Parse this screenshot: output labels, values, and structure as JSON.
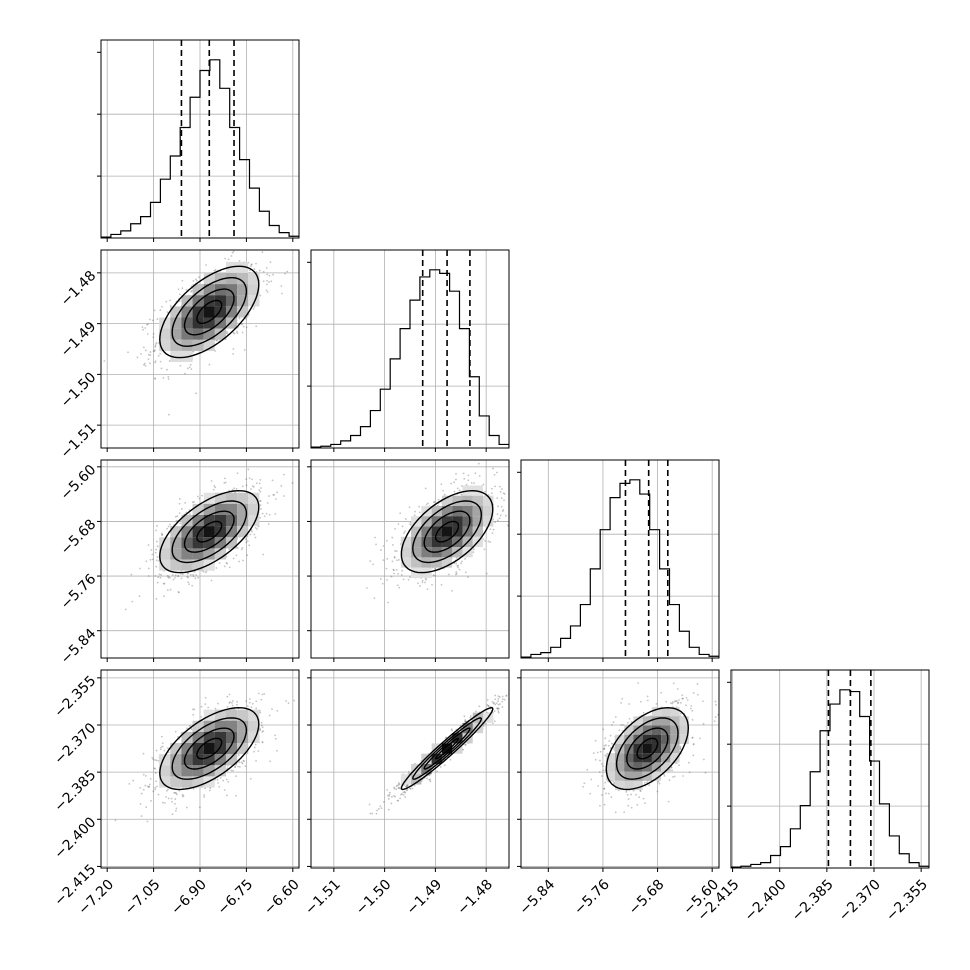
{
  "chart_data": {
    "type": "corner",
    "title": "",
    "grid": true,
    "parameters": [
      {
        "name": "",
        "range": [
          -7.22,
          -6.58
        ],
        "ticks": [
          "−7.20",
          "−7.05",
          "−6.90",
          "−6.75",
          "−6.60"
        ],
        "tick_values": [
          -7.2,
          -7.05,
          -6.9,
          -6.75,
          -6.6
        ],
        "quantiles": [
          -6.96,
          -6.87,
          -6.79
        ],
        "mean": -6.87,
        "sd": 0.08
      },
      {
        "name": "",
        "range": [
          -1.5145,
          -1.4755
        ],
        "ticks": [
          "−1.51",
          "−1.50",
          "−1.49",
          "−1.48"
        ],
        "tick_values": [
          -1.51,
          -1.5,
          -1.49,
          -1.48
        ],
        "quantiles": [
          -1.4925,
          -1.4877,
          -1.4832
        ],
        "mean": -1.4877,
        "sd": 0.0045
      },
      {
        "name": "",
        "range": [
          -5.88,
          -5.59
        ],
        "ticks": [
          "−5.84",
          "−5.76",
          "−5.68",
          "−5.60"
        ],
        "tick_values": [
          -5.84,
          -5.76,
          -5.68,
          -5.6
        ],
        "quantiles": [
          -5.727,
          -5.693,
          -5.665
        ],
        "mean": -5.695,
        "sd": 0.03
      },
      {
        "name": "",
        "range": [
          -2.4155,
          -2.3525
        ],
        "ticks": [
          "−2.415",
          "−2.400",
          "−2.385",
          "−2.370",
          "−2.355"
        ],
        "tick_values": [
          -2.415,
          -2.4,
          -2.385,
          -2.37,
          -2.355
        ],
        "quantiles": [
          -2.3845,
          -2.3775,
          -2.371
        ],
        "mean": -2.3775,
        "sd": 0.0065
      }
    ],
    "correlations": [
      [
        1.0,
        0.6,
        0.6,
        0.6
      ],
      [
        0.6,
        1.0,
        0.55,
        0.97
      ],
      [
        0.6,
        0.55,
        1.0,
        0.5
      ],
      [
        0.6,
        0.97,
        0.5,
        1.0
      ]
    ],
    "histograms": [
      [
        0.005,
        0.02,
        0.04,
        0.08,
        0.12,
        0.2,
        0.33,
        0.46,
        0.62,
        0.79,
        0.94,
        1.0,
        0.84,
        0.62,
        0.44,
        0.28,
        0.15,
        0.07,
        0.03,
        0.01
      ],
      [
        0.005,
        0.01,
        0.02,
        0.04,
        0.07,
        0.12,
        0.21,
        0.33,
        0.5,
        0.67,
        0.83,
        0.96,
        1.0,
        0.98,
        0.88,
        0.67,
        0.4,
        0.18,
        0.07,
        0.02
      ],
      [
        0.005,
        0.02,
        0.03,
        0.06,
        0.11,
        0.18,
        0.3,
        0.5,
        0.72,
        0.9,
        0.98,
        1.0,
        0.92,
        0.72,
        0.5,
        0.3,
        0.15,
        0.06,
        0.02,
        0.01
      ],
      [
        0.005,
        0.01,
        0.02,
        0.03,
        0.07,
        0.12,
        0.22,
        0.35,
        0.54,
        0.77,
        0.92,
        1.0,
        0.99,
        0.85,
        0.6,
        0.36,
        0.18,
        0.08,
        0.03,
        0.01
      ]
    ]
  },
  "colors": {
    "axis": "#000000",
    "grid": "#b0b0b0",
    "scatter": "#555555",
    "contour": "#000000"
  }
}
